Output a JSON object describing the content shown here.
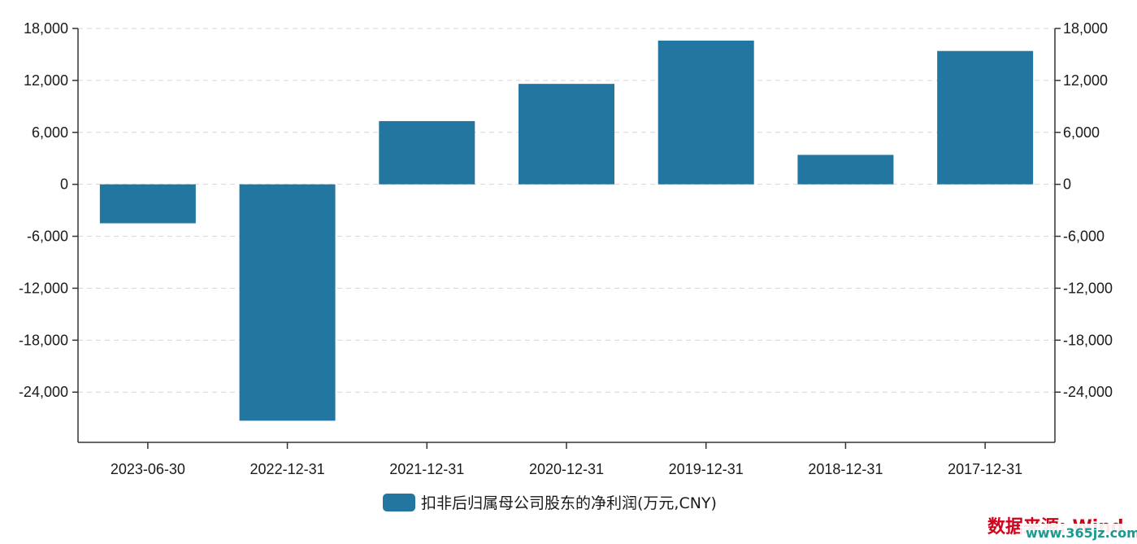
{
  "chart_data": {
    "type": "bar",
    "categories": [
      "2023-06-30",
      "2022-12-31",
      "2021-12-31",
      "2020-12-31",
      "2019-12-31",
      "2018-12-31",
      "2017-12-31"
    ],
    "series": [
      {
        "name": "扣非后归属母公司股东的净利润(万元,CNY)",
        "color": "#23769f",
        "values": [
          -4500,
          -27300,
          7300,
          11600,
          16600,
          3400,
          15400
        ]
      }
    ],
    "yticks": [
      18000,
      12000,
      6000,
      0,
      -6000,
      -12000,
      -18000,
      -24000
    ],
    "ytick_labels": [
      "18,000",
      "12,000",
      "6,000",
      "0",
      "-6,000",
      "-12,000",
      "-18,000",
      "-24,000"
    ],
    "ylim": [
      -29800,
      18000
    ],
    "grid": true,
    "legend_position": "bottom-center",
    "source": "数据来源: Wind",
    "watermark": "www.365jz.com"
  }
}
